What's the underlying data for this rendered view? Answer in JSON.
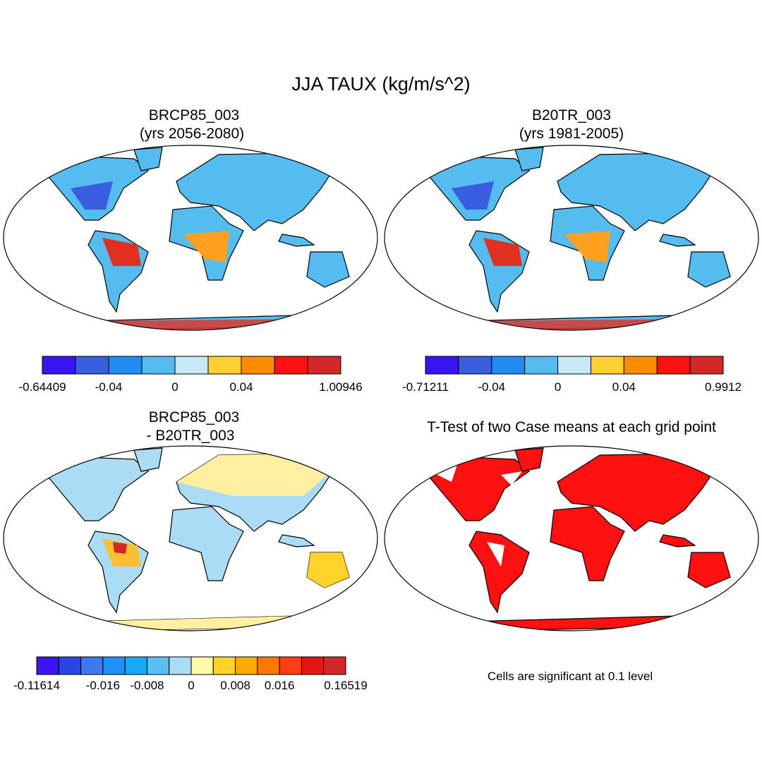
{
  "title": "JJA TAUX (kg/m/s^2)",
  "panels": [
    {
      "title": [
        "BRCP85_003",
        "(yrs 2056-2080)"
      ],
      "colorbar": {
        "colors": [
          "#3a14f0",
          "#3a5ee0",
          "#1e8cf0",
          "#55bcf0",
          "#c8e8f5",
          "#ffd030",
          "#ff8c00",
          "#ff1010",
          "#d42828"
        ],
        "labels": [
          "-0.64409",
          "-0.04",
          "0",
          "0.04",
          "1.00946"
        ]
      }
    },
    {
      "title": [
        "B20TR_003",
        "(yrs 1981-2005)"
      ],
      "colorbar": {
        "colors": [
          "#3a14f0",
          "#3a5ee0",
          "#1e8cf0",
          "#55bcf0",
          "#c8e8f5",
          "#ffd030",
          "#ff8c00",
          "#ff1010",
          "#d42828"
        ],
        "labels": [
          "-0.71211",
          "-0.04",
          "0",
          "0.04",
          "0.9912"
        ]
      }
    },
    {
      "title": [
        "BRCP85_003",
        "- B20TR_003"
      ],
      "colorbar": {
        "colors": [
          "#3c14f5",
          "#2846e6",
          "#3c78f0",
          "#1e90ff",
          "#14aaf5",
          "#5abef0",
          "#aadcf5",
          "#fffaaa",
          "#ffd228",
          "#ffaa00",
          "#ff7800",
          "#ff3c14",
          "#e61414",
          "#d22828"
        ],
        "labels": [
          "-0.11614",
          "-0.016",
          "-0.008",
          "0",
          "0.008",
          "0.016",
          "0.16519"
        ]
      }
    },
    {
      "title": [
        "T-Test of two Case means at each grid point"
      ],
      "note": "Cells are significant at 0.1 level"
    }
  ]
}
